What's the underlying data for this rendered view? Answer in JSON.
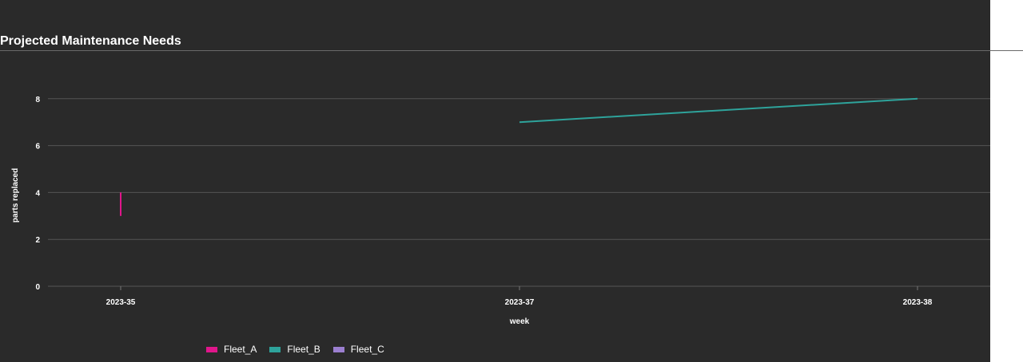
{
  "chart_data": {
    "type": "line",
    "title": "Projected Maintenance Needs",
    "xlabel": "week",
    "ylabel": "parts replaced",
    "categories": [
      "2023-35",
      "2023-37",
      "2023-38"
    ],
    "ylim": [
      0,
      9.2
    ],
    "yticks": [
      0,
      2,
      4,
      6,
      8
    ],
    "grid": true,
    "legend_position": "bottom-left",
    "series": [
      {
        "name": "Fleet_A",
        "color": "#e0168b",
        "points": [
          {
            "x": "2023-35",
            "y_low": 3,
            "y_high": 4
          }
        ]
      },
      {
        "name": "Fleet_B",
        "color": "#2ea39b",
        "points": [
          {
            "x": "2023-37",
            "y": 7
          },
          {
            "x": "2023-38",
            "y": 8
          }
        ]
      },
      {
        "name": "Fleet_C",
        "color": "#9b7fd0",
        "points": []
      }
    ]
  }
}
